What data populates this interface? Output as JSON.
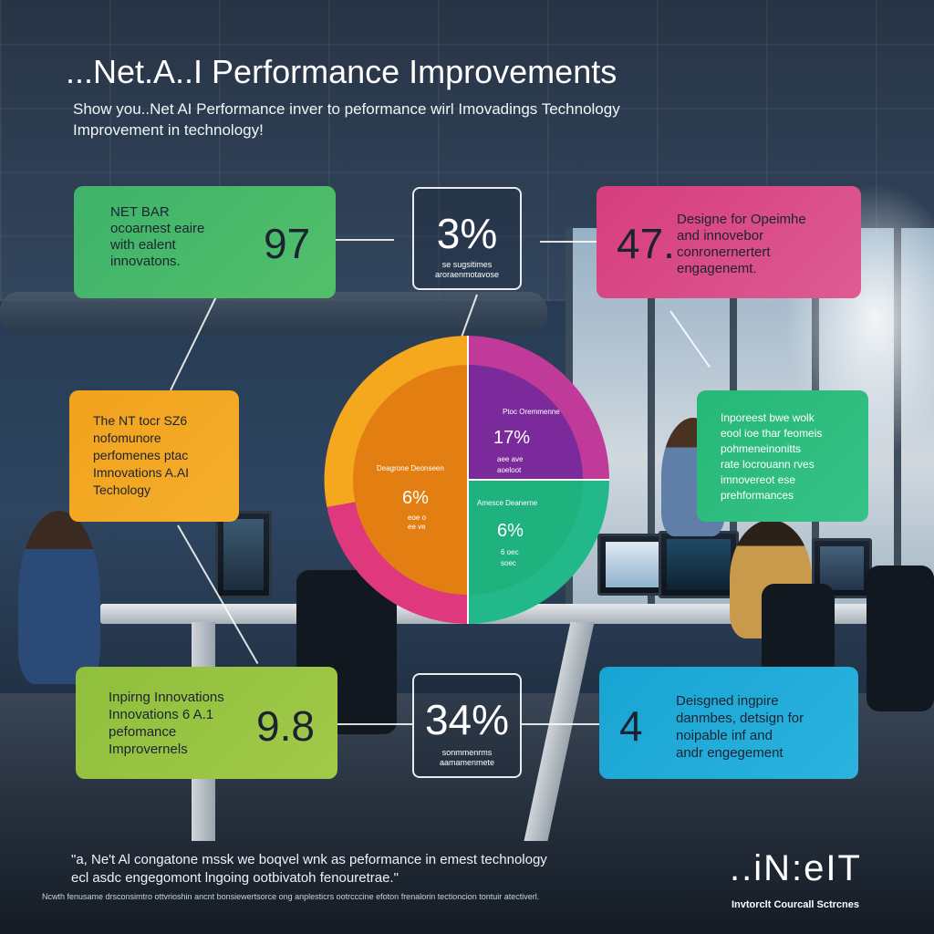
{
  "header": {
    "title": "...Net.A..I Performance  Improvements",
    "subtitle_lines": [
      "Show you..Net AI Performance inver to peformance wirl Imovadings Technology",
      "Improvement in technology!"
    ]
  },
  "cards": {
    "top_left": {
      "lines": [
        "NET BAR",
        "ocoarnest eaire",
        "with ealent",
        "innovatons."
      ],
      "value": "97",
      "color": "#3fb36b"
    },
    "top_center": {
      "value": "3%",
      "caption_lines": [
        "se sugsitimes",
        "aroraenmotavose"
      ]
    },
    "top_right": {
      "lines": [
        "Designe for Opeimhe",
        "and innovebor",
        "conronernertert",
        "engagenemt."
      ],
      "value": "47.",
      "color": "#d94a86"
    },
    "middle_left": {
      "lines": [
        "The NT tocr SZ6",
        "nofomunore",
        "perfomenes ptac",
        "Imnovations A.AI",
        "Techology"
      ],
      "color": "#f2a21c"
    },
    "middle_right": {
      "lines": [
        "Inporeest bwe wolk",
        "eool ioe thar feomeis",
        "pohmeneinonitts",
        "rate locrouann rves",
        "imnovereot ese",
        "prehformances"
      ],
      "color": "#2dbd78"
    },
    "bottom_left": {
      "lines": [
        "Inpirng Innovations",
        "Innovations 6 A.1",
        "pefomance",
        "Improvernels"
      ],
      "value": "9.8",
      "color": "#8fbf3c"
    },
    "bottom_center": {
      "value": "34%",
      "caption_lines": [
        "sonmmenrms",
        "aamamenmete"
      ]
    },
    "bottom_right": {
      "lines": [
        "Deisgned ingpire",
        "danmbes, detsign for",
        "noipable inf and",
        "andr engegement"
      ],
      "value": "4",
      "color": "#1ba9d6"
    }
  },
  "donut": {
    "slices": [
      {
        "label": "Ptoc Oremmenne",
        "value": "17%",
        "caption": "aee ave",
        "caption2": "aoeloot",
        "color": "#8e2aa6",
        "quadrant": "top-right"
      },
      {
        "label": "Amesce Deanerne",
        "value": "6%",
        "caption": "6 oec",
        "caption2": "soec",
        "color": "#1fb58a",
        "quadrant": "bottom-right"
      },
      {
        "label": "Deagrone Deonseen",
        "value": "6%",
        "caption": "eoe o",
        "caption2": "ee ve",
        "color": "#f0a01c",
        "quadrant": "left"
      }
    ],
    "outer_colors": {
      "left_top": "#f5a71d",
      "left_bottom": "#e0387d",
      "right_top": "#c03a9a",
      "right_bottom": "#22b88a"
    }
  },
  "footer": {
    "quote_lines": [
      "\"a, Ne't Al congatone mssk we boqvel wnk as peformance in emest technology",
      "ecl asdc engegomont lngoing ootbivatoh fenouretrae.\""
    ],
    "fine_print": "Ncwth fenusame drsconsimtro ottvrioshin ancnt bonsiewertsorce ong anplesticrs ootrcccine efoton frenalorin tectioncion tontuir atectiverl.",
    "brand_name": "..iN:eIT",
    "brand_tagline": "Invtorclt Courcall Sctrcnes"
  }
}
